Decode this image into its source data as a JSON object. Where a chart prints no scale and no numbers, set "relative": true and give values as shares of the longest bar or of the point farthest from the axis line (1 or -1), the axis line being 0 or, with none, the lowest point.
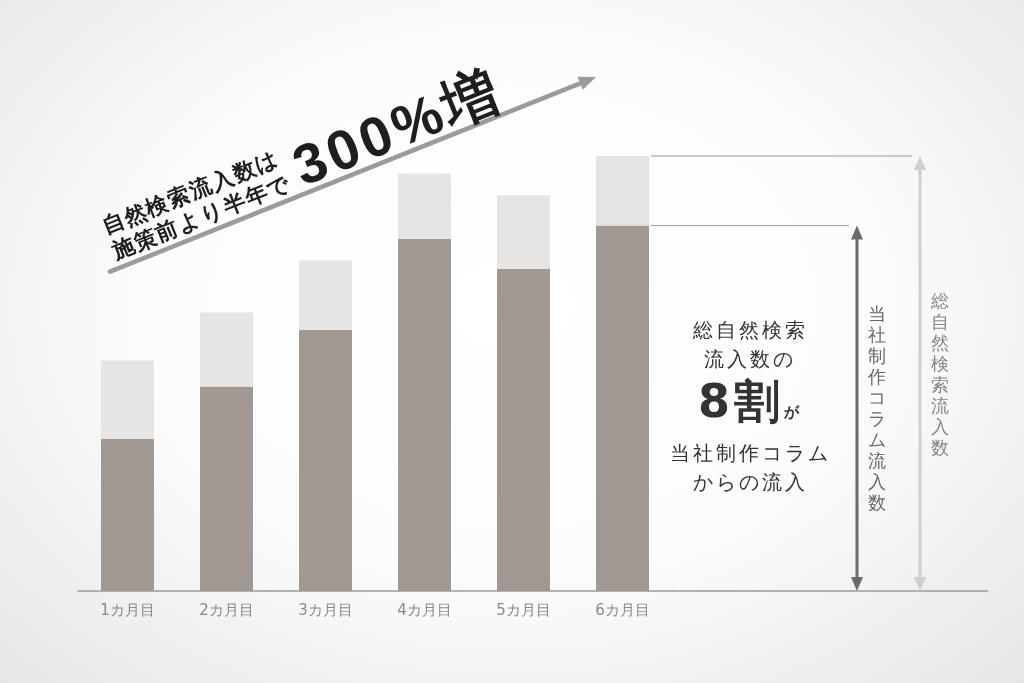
{
  "chart_data": {
    "type": "bar",
    "title": "自然検索流入数は施策前より半年で300%増",
    "categories": [
      "1カ月目",
      "2カ月目",
      "3カ月目",
      "4カ月目",
      "5カ月目",
      "6カ月目"
    ],
    "stacked": true,
    "relative": true,
    "series": [
      {
        "color": "#9f9893",
        "values": [
          0.35,
          0.47,
          0.6,
          0.81,
          0.74,
          0.84
        ]
      },
      {
        "color": "#e6e5e4",
        "values": [
          0.18,
          0.17,
          0.16,
          0.15,
          0.17,
          0.16
        ]
      }
    ],
    "annotations": [
      "総自然検索流入数の8割が当社制作コラムからの流入",
      "当社制作コラム流入数",
      "総自然検索流入数"
    ]
  }
}
